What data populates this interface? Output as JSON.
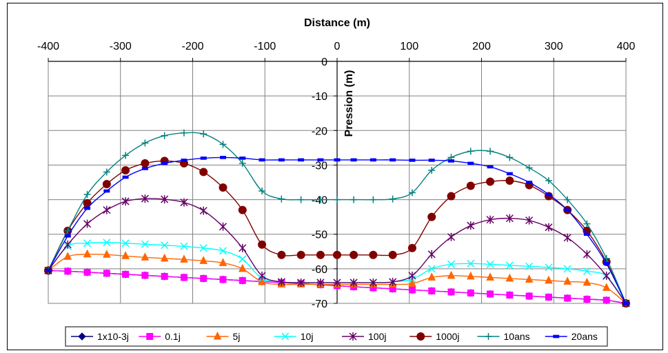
{
  "chart_data": {
    "type": "line",
    "xlabel": "Distance (m)",
    "ylabel": "Pression (m)",
    "xlim": [
      -400,
      400
    ],
    "ylim": [
      -70,
      0
    ],
    "x_ticks": [
      "-400",
      "-300",
      "-200",
      "-100",
      "0",
      "100",
      "200",
      "300",
      "400"
    ],
    "y_ticks": [
      "0",
      "-10",
      "-20",
      "-30",
      "-40",
      "-50",
      "-60",
      "-70"
    ],
    "x_axis_position": "top",
    "y_axis_position": "center (x = 0)",
    "grid": true,
    "legend_position": "bottom",
    "x": [
      -400,
      -373,
      -346,
      -319,
      -293,
      -266,
      -239,
      -212,
      -185,
      -158,
      -131,
      -104,
      -77,
      -50,
      -23,
      0,
      23,
      50,
      77,
      104,
      131,
      158,
      185,
      212,
      239,
      266,
      293,
      319,
      346,
      373,
      400
    ],
    "series": [
      {
        "name": "1x10-3j",
        "color": "#000080",
        "marker": "diamond",
        "values": [
          -60.5,
          -60.7,
          -61.0,
          -61.3,
          -61.6,
          -61.9,
          -62.2,
          -62.5,
          -62.8,
          -63.1,
          -63.4,
          -63.7,
          -64.0,
          -64.3,
          -64.6,
          -64.9,
          -65.2,
          -65.5,
          -65.8,
          -66.1,
          -66.4,
          -66.7,
          -67.0,
          -67.3,
          -67.6,
          -67.9,
          -68.2,
          -68.5,
          -68.8,
          -69.1,
          -70.0
        ]
      },
      {
        "name": "0.1j",
        "color": "#ff00ff",
        "marker": "square",
        "values": [
          -60.5,
          -60.7,
          -61.0,
          -61.3,
          -61.6,
          -61.9,
          -62.2,
          -62.5,
          -62.8,
          -63.1,
          -63.4,
          -63.7,
          -64.0,
          -64.3,
          -64.6,
          -64.9,
          -65.2,
          -65.5,
          -65.8,
          -66.1,
          -66.4,
          -66.7,
          -67.0,
          -67.3,
          -67.6,
          -67.9,
          -68.2,
          -68.5,
          -68.8,
          -69.1,
          -70.0
        ]
      },
      {
        "name": "5j",
        "color": "#ff6600",
        "marker": "triangle",
        "values": [
          -60.5,
          -56.5,
          -55.8,
          -55.9,
          -56.3,
          -56.7,
          -57.0,
          -57.3,
          -57.7,
          -58.3,
          -60.0,
          -63.8,
          -64.5,
          -64.5,
          -64.5,
          -64.5,
          -64.5,
          -64.5,
          -64.5,
          -64.3,
          -62.5,
          -62.0,
          -62.2,
          -62.5,
          -62.8,
          -63.1,
          -63.4,
          -63.7,
          -64.0,
          -65.5,
          -70.0
        ]
      },
      {
        "name": "10j",
        "color": "#00ffff",
        "marker": "x",
        "values": [
          -60.5,
          -53.5,
          -52.6,
          -52.4,
          -52.6,
          -52.9,
          -53.2,
          -53.5,
          -54.0,
          -54.8,
          -57.2,
          -62.8,
          -63.8,
          -64.0,
          -64.0,
          -64.0,
          -64.0,
          -64.0,
          -63.8,
          -63.0,
          -60.0,
          -58.7,
          -58.5,
          -58.7,
          -59.0,
          -59.3,
          -59.6,
          -60.0,
          -60.7,
          -62.2,
          -70.0
        ]
      },
      {
        "name": "100j",
        "color": "#660066",
        "marker": "star",
        "values": [
          -60.5,
          -53.0,
          -47.0,
          -43.0,
          -40.5,
          -39.7,
          -39.9,
          -40.8,
          -43.2,
          -47.8,
          -54.0,
          -62.0,
          -63.8,
          -64.0,
          -64.0,
          -64.0,
          -64.0,
          -64.0,
          -63.8,
          -62.0,
          -55.8,
          -50.8,
          -47.5,
          -45.8,
          -45.4,
          -46.0,
          -48.0,
          -51.0,
          -55.8,
          -62.0,
          -70.0
        ]
      },
      {
        "name": "1000j",
        "color": "#800000",
        "marker": "circle",
        "values": [
          -60.5,
          -49.0,
          -41.0,
          -35.5,
          -31.5,
          -29.5,
          -28.8,
          -29.5,
          -32.0,
          -36.5,
          -43.0,
          -53.0,
          -56.0,
          -56.0,
          -56.0,
          -56.0,
          -56.0,
          -56.0,
          -56.0,
          -54.0,
          -45.0,
          -39.0,
          -36.0,
          -34.8,
          -34.5,
          -35.8,
          -39.0,
          -43.0,
          -49.0,
          -58.0,
          -70.0
        ]
      },
      {
        "name": "10ans",
        "color": "#008080",
        "marker": "plus",
        "values": [
          -60.5,
          -49.0,
          -38.5,
          -32.0,
          -27.2,
          -23.6,
          -21.5,
          -20.7,
          -21.0,
          -24.0,
          -29.5,
          -37.5,
          -39.8,
          -40.0,
          -40.0,
          -40.0,
          -40.0,
          -40.0,
          -39.8,
          -38.0,
          -31.5,
          -27.8,
          -26.0,
          -26.0,
          -27.8,
          -30.8,
          -34.5,
          -40.0,
          -47.0,
          -57.0,
          -70.0
        ]
      },
      {
        "name": "20ans",
        "color": "#0000ff",
        "marker": "dash",
        "values": [
          -60.5,
          -50.5,
          -42.5,
          -37.5,
          -33.5,
          -31.0,
          -29.5,
          -28.6,
          -28.0,
          -27.8,
          -28.0,
          -28.5,
          -28.5,
          -28.5,
          -28.5,
          -28.5,
          -28.5,
          -28.5,
          -28.5,
          -28.6,
          -28.6,
          -28.8,
          -29.5,
          -30.5,
          -32.5,
          -35.0,
          -38.5,
          -43.0,
          -50.0,
          -58.5,
          -70.0
        ]
      }
    ]
  }
}
